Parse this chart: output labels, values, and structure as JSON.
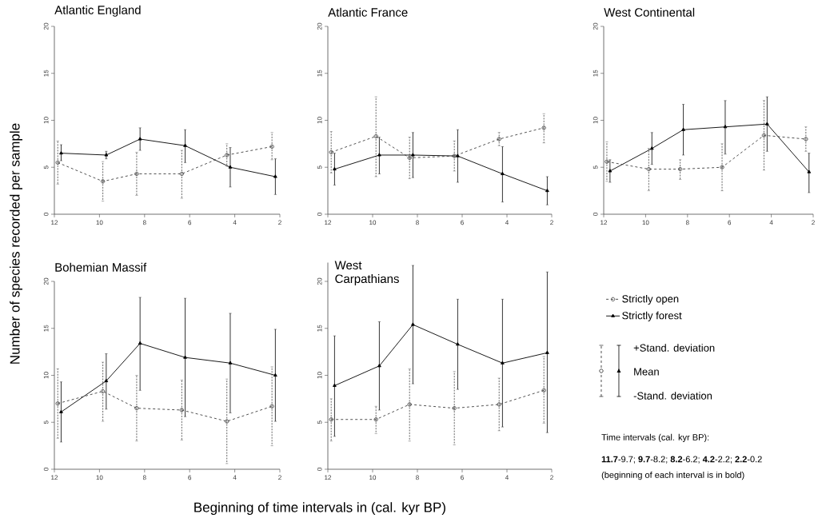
{
  "chart_data": [
    {
      "type": "line",
      "title": "Atlantic England",
      "x": [
        11.7,
        9.7,
        8.2,
        6.2,
        4.2,
        2.2
      ],
      "xlim": [
        12,
        2
      ],
      "ylim": [
        0,
        20
      ],
      "xticks": [
        12,
        10,
        8,
        6,
        4,
        2
      ],
      "yticks": [
        0,
        5,
        10,
        15,
        20
      ],
      "series": [
        {
          "x": [
            11.85,
            9.85,
            8.35,
            6.35,
            4.35,
            2.35
          ],
          "color": "#404040",
          "marker": "circle",
          "line_style": "dashed",
          "values": [
            5.5,
            3.5,
            4.3,
            4.3,
            6.3,
            7.2
          ],
          "errors": [
            [
              3.2,
              7.8
            ],
            [
              1.4,
              5.6
            ],
            [
              2.0,
              6.6
            ],
            [
              1.7,
              6.8
            ],
            [
              5.1,
              7.5
            ],
            [
              5.8,
              8.7
            ]
          ]
        },
        {
          "color": "#000000",
          "marker": "triangle",
          "line_style": "solid",
          "values": [
            6.5,
            6.3,
            8.0,
            7.3,
            5.0,
            4.0
          ],
          "errors": [
            [
              5.7,
              7.4
            ],
            [
              5.9,
              6.7
            ],
            [
              6.8,
              9.2
            ],
            [
              5.5,
              9.0
            ],
            [
              2.9,
              7.1
            ],
            [
              2.1,
              5.9
            ]
          ]
        }
      ]
    },
    {
      "type": "line",
      "title": "Atlantic France",
      "x": [
        11.7,
        9.7,
        8.2,
        6.2,
        4.2,
        2.2
      ],
      "xlim": [
        12,
        2
      ],
      "ylim": [
        0,
        20
      ],
      "xticks": [
        12,
        10,
        8,
        6,
        4,
        2
      ],
      "yticks": [
        0,
        5,
        10,
        15,
        20
      ],
      "series": [
        {
          "x": [
            11.85,
            9.85,
            8.35,
            6.35,
            4.35,
            2.35
          ],
          "color": "#404040",
          "marker": "circle",
          "line_style": "dashed",
          "values": [
            6.6,
            8.3,
            6.0,
            6.2,
            8.0,
            9.2
          ],
          "errors": [
            [
              4.4,
              8.8
            ],
            [
              4.0,
              12.5
            ],
            [
              3.8,
              8.2
            ],
            [
              4.6,
              7.8
            ],
            [
              7.3,
              8.7
            ],
            [
              7.6,
              10.7
            ]
          ]
        },
        {
          "color": "#000000",
          "marker": "triangle",
          "line_style": "solid",
          "values": [
            4.8,
            6.3,
            6.3,
            6.2,
            4.3,
            2.5
          ],
          "errors": [
            [
              3.1,
              6.5
            ],
            [
              4.3,
              8.2
            ],
            [
              3.9,
              8.7
            ],
            [
              3.4,
              9.0
            ],
            [
              1.3,
              7.2
            ],
            [
              1.0,
              4.0
            ]
          ]
        }
      ]
    },
    {
      "type": "line",
      "title": "West Continental",
      "x": [
        11.7,
        9.7,
        8.2,
        6.2,
        4.2,
        2.2
      ],
      "xlim": [
        12,
        2
      ],
      "ylim": [
        0,
        20
      ],
      "xticks": [
        12,
        10,
        8,
        6,
        4,
        2
      ],
      "yticks": [
        0,
        5,
        10,
        15,
        20
      ],
      "series": [
        {
          "x": [
            11.85,
            9.85,
            8.35,
            6.35,
            4.35,
            2.35
          ],
          "color": "#404040",
          "marker": "circle",
          "line_style": "dashed",
          "values": [
            5.6,
            4.8,
            4.8,
            5.0,
            8.4,
            8.0
          ],
          "errors": [
            [
              3.5,
              7.7
            ],
            [
              2.5,
              7.0
            ],
            [
              3.7,
              5.8
            ],
            [
              2.5,
              7.5
            ],
            [
              4.7,
              12.1
            ],
            [
              6.7,
              9.3
            ]
          ]
        },
        {
          "color": "#000000",
          "marker": "triangle",
          "line_style": "solid",
          "values": [
            4.6,
            7.0,
            9.0,
            9.3,
            9.6,
            4.5
          ],
          "errors": [
            [
              3.4,
              5.8
            ],
            [
              5.3,
              8.7
            ],
            [
              6.3,
              11.7
            ],
            [
              6.4,
              12.1
            ],
            [
              6.7,
              12.5
            ],
            [
              2.3,
              6.5
            ]
          ]
        }
      ]
    },
    {
      "type": "line",
      "title": "Bohemian Massif",
      "ylabel": "Number of species recorded per sample",
      "x": [
        11.7,
        9.7,
        8.2,
        6.2,
        4.2,
        2.2
      ],
      "xlim": [
        12,
        2
      ],
      "ylim": [
        0,
        20
      ],
      "xticks": [
        12,
        10,
        8,
        6,
        4,
        2
      ],
      "yticks": [
        0,
        5,
        10,
        15,
        20
      ],
      "series": [
        {
          "x": [
            11.85,
            9.85,
            8.35,
            6.35,
            4.35,
            2.35
          ],
          "color": "#404040",
          "marker": "circle",
          "line_style": "dashed",
          "values": [
            7.0,
            8.3,
            6.5,
            6.3,
            5.1,
            6.7
          ],
          "errors": [
            [
              3.3,
              10.7
            ],
            [
              5.1,
              11.4
            ],
            [
              3.0,
              10.0
            ],
            [
              3.1,
              9.5
            ],
            [
              0.6,
              9.6
            ],
            [
              2.5,
              10.9
            ]
          ]
        },
        {
          "color": "#000000",
          "marker": "triangle",
          "line_style": "solid",
          "values": [
            6.1,
            9.4,
            13.4,
            11.9,
            11.3,
            10.0
          ],
          "errors": [
            [
              2.9,
              9.3
            ],
            [
              6.4,
              12.3
            ],
            [
              8.4,
              18.3
            ],
            [
              5.6,
              18.2
            ],
            [
              6.0,
              16.6
            ],
            [
              5.1,
              14.9
            ]
          ]
        }
      ]
    },
    {
      "type": "line",
      "title": "West Carpathians",
      "xlabel": "Beginning of time intervals in (cal. kyr BP)",
      "x": [
        11.7,
        9.7,
        8.2,
        6.2,
        4.2,
        2.2
      ],
      "xlim": [
        12,
        2
      ],
      "ylim": [
        0,
        22
      ],
      "xticks": [
        12,
        10,
        8,
        6,
        4,
        2
      ],
      "yticks": [
        0,
        5,
        10,
        15,
        20
      ],
      "legend": "right",
      "series": [
        {
          "name": "Strictly open",
          "x": [
            11.85,
            9.85,
            8.35,
            6.35,
            4.35,
            2.35
          ],
          "color": "#404040",
          "marker": "circle",
          "line_style": "dashed",
          "values": [
            5.3,
            5.3,
            6.9,
            6.5,
            6.9,
            8.4
          ],
          "errors": [
            [
              3.0,
              7.5
            ],
            [
              3.8,
              6.7
            ],
            [
              3.0,
              10.7
            ],
            [
              2.6,
              10.4
            ],
            [
              4.1,
              9.7
            ],
            [
              4.9,
              12.0
            ]
          ]
        },
        {
          "name": "Strictly forest",
          "color": "#000000",
          "marker": "triangle",
          "line_style": "solid",
          "values": [
            8.9,
            11.0,
            15.4,
            13.3,
            11.3,
            12.4
          ],
          "errors": [
            [
              3.5,
              14.2
            ],
            [
              6.3,
              15.7
            ],
            [
              9.1,
              21.7
            ],
            [
              8.5,
              18.1
            ],
            [
              4.5,
              18.1
            ],
            [
              3.9,
              21.0
            ]
          ]
        }
      ],
      "annotations": [
        "+Stand. deviation",
        "Mean",
        "-Stand. deviation",
        "Time intervals (cal. kyr BP):",
        "**11.7**-9.7; **9.7**-8.2; **8.2**-6.2; **4.2**-2.2; **2.2**-0.2",
        "(beginning of each interval is in bold)"
      ]
    }
  ]
}
